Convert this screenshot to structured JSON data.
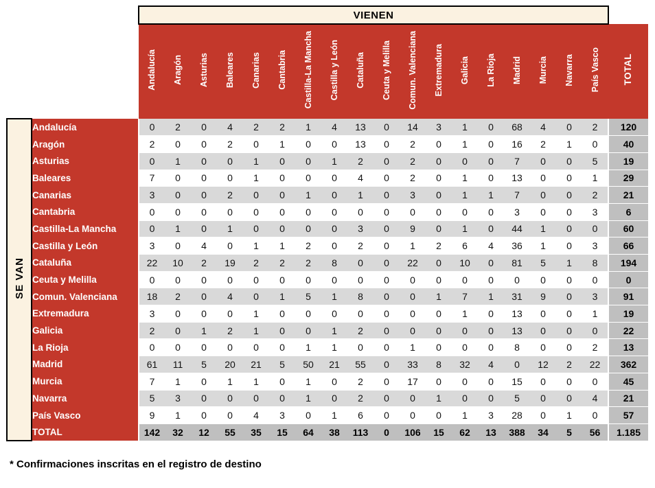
{
  "header": {
    "top_label": "VIENEN",
    "left_label": "SE VAN",
    "total_label": "TOTAL"
  },
  "matrix": {
    "columns": [
      "Andalucía",
      "Aragón",
      "Asturias",
      "Baleares",
      "Canarias",
      "Cantabria",
      "Castilla-La Mancha",
      "Castilla y León",
      "Cataluña",
      "Ceuta y Melilla",
      "Comun. Valenciana",
      "Extremadura",
      "Galicia",
      "La Rioja",
      "Madrid",
      "Murcia",
      "Navarra",
      "País Vasco"
    ],
    "rows": [
      {
        "label": "Andalucía",
        "values": [
          0,
          2,
          0,
          4,
          2,
          2,
          1,
          4,
          13,
          0,
          14,
          3,
          1,
          0,
          68,
          4,
          0,
          2
        ],
        "total": "120"
      },
      {
        "label": "Aragón",
        "values": [
          2,
          0,
          0,
          2,
          0,
          1,
          0,
          0,
          13,
          0,
          2,
          0,
          1,
          0,
          16,
          2,
          1,
          0
        ],
        "total": "40"
      },
      {
        "label": "Asturias",
        "values": [
          0,
          1,
          0,
          0,
          1,
          0,
          0,
          1,
          2,
          0,
          2,
          0,
          0,
          0,
          7,
          0,
          0,
          5
        ],
        "total": "19"
      },
      {
        "label": "Baleares",
        "values": [
          7,
          0,
          0,
          0,
          1,
          0,
          0,
          0,
          4,
          0,
          2,
          0,
          1,
          0,
          13,
          0,
          0,
          1
        ],
        "total": "29"
      },
      {
        "label": "Canarias",
        "values": [
          3,
          0,
          0,
          2,
          0,
          0,
          1,
          0,
          1,
          0,
          3,
          0,
          1,
          1,
          7,
          0,
          0,
          2
        ],
        "total": "21"
      },
      {
        "label": "Cantabria",
        "values": [
          0,
          0,
          0,
          0,
          0,
          0,
          0,
          0,
          0,
          0,
          0,
          0,
          0,
          0,
          3,
          0,
          0,
          3
        ],
        "total": "6"
      },
      {
        "label": "Castilla-La Mancha",
        "values": [
          0,
          1,
          0,
          1,
          0,
          0,
          0,
          0,
          3,
          0,
          9,
          0,
          1,
          0,
          44,
          1,
          0,
          0
        ],
        "total": "60"
      },
      {
        "label": "Castilla y León",
        "values": [
          3,
          0,
          4,
          0,
          1,
          1,
          2,
          0,
          2,
          0,
          1,
          2,
          6,
          4,
          36,
          1,
          0,
          3
        ],
        "total": "66"
      },
      {
        "label": "Cataluña",
        "values": [
          22,
          10,
          2,
          19,
          2,
          2,
          2,
          8,
          0,
          0,
          22,
          0,
          10,
          0,
          81,
          5,
          1,
          8
        ],
        "total": "194"
      },
      {
        "label": "Ceuta y Melilla",
        "values": [
          0,
          0,
          0,
          0,
          0,
          0,
          0,
          0,
          0,
          0,
          0,
          0,
          0,
          0,
          0,
          0,
          0,
          0
        ],
        "total": "0"
      },
      {
        "label": "Comun. Valenciana",
        "values": [
          18,
          2,
          0,
          4,
          0,
          1,
          5,
          1,
          8,
          0,
          0,
          1,
          7,
          1,
          31,
          9,
          0,
          3
        ],
        "total": "91"
      },
      {
        "label": "Extremadura",
        "values": [
          3,
          0,
          0,
          0,
          1,
          0,
          0,
          0,
          0,
          0,
          0,
          0,
          1,
          0,
          13,
          0,
          0,
          1
        ],
        "total": "19"
      },
      {
        "label": "Galicia",
        "values": [
          2,
          0,
          1,
          2,
          1,
          0,
          0,
          1,
          2,
          0,
          0,
          0,
          0,
          0,
          13,
          0,
          0,
          0
        ],
        "total": "22"
      },
      {
        "label": "La Rioja",
        "values": [
          0,
          0,
          0,
          0,
          0,
          0,
          1,
          1,
          0,
          0,
          1,
          0,
          0,
          0,
          8,
          0,
          0,
          2
        ],
        "total": "13"
      },
      {
        "label": "Madrid",
        "values": [
          61,
          11,
          5,
          20,
          21,
          5,
          50,
          21,
          55,
          0,
          33,
          8,
          32,
          4,
          0,
          12,
          2,
          22
        ],
        "total": "362"
      },
      {
        "label": "Murcia",
        "values": [
          7,
          1,
          0,
          1,
          1,
          0,
          1,
          0,
          2,
          0,
          17,
          0,
          0,
          0,
          15,
          0,
          0,
          0
        ],
        "total": "45"
      },
      {
        "label": "Navarra",
        "values": [
          5,
          3,
          0,
          0,
          0,
          0,
          1,
          0,
          2,
          0,
          0,
          1,
          0,
          0,
          5,
          0,
          0,
          4
        ],
        "total": "21"
      },
      {
        "label": "País Vasco",
        "values": [
          9,
          1,
          0,
          0,
          4,
          3,
          0,
          1,
          6,
          0,
          0,
          0,
          1,
          3,
          28,
          0,
          1,
          0
        ],
        "total": "57"
      }
    ],
    "total_row": {
      "label": "TOTAL",
      "values": [
        142,
        32,
        12,
        55,
        35,
        15,
        64,
        38,
        113,
        0,
        106,
        15,
        62,
        13,
        388,
        34,
        5,
        56
      ],
      "total": "1.185"
    }
  },
  "footnote": "* Confirmaciones inscritas en el registro de destino",
  "colors": {
    "header_red": "#C3382B",
    "band_cream": "#FBF2E1",
    "stripe_gray": "#D9D9D9",
    "total_gray": "#BFBFBF",
    "text_dark": "#111111"
  }
}
